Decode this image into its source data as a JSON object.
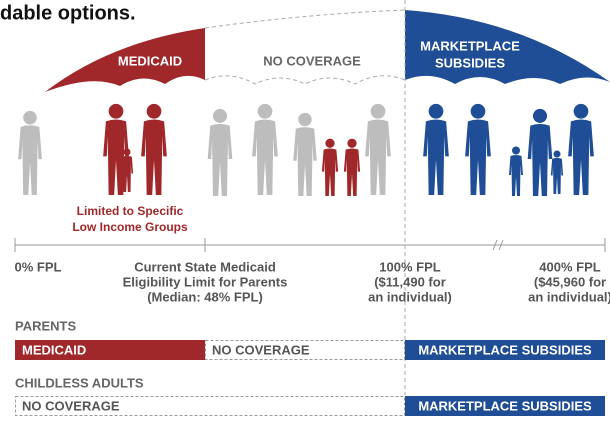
{
  "title": "dable options.",
  "canopy": {
    "left": "MEDICAID",
    "middle": "NO COVERAGE",
    "right": [
      "MARKETPLACE",
      "SUBSIDIES"
    ]
  },
  "note": [
    "Limited to Specific",
    "Low Income Groups"
  ],
  "axis_labels": [
    [
      "0% FPL"
    ],
    [
      "Current State Medicaid",
      "Eligibility Limit for Parents",
      "(Median: 48% FPL)"
    ],
    [
      "100% FPL",
      "($11,490 for",
      "an individual)"
    ],
    [
      "400% FPL",
      "($45,960 for",
      "an individual)"
    ]
  ],
  "rows": [
    {
      "label": "PARENTS",
      "segments": [
        "MEDICAID",
        "NO COVERAGE",
        "MARKETPLACE SUBSIDIES"
      ]
    },
    {
      "label": "CHILDLESS ADULTS",
      "segments": [
        "NO COVERAGE",
        "MARKETPLACE SUBSIDIES"
      ]
    }
  ]
}
